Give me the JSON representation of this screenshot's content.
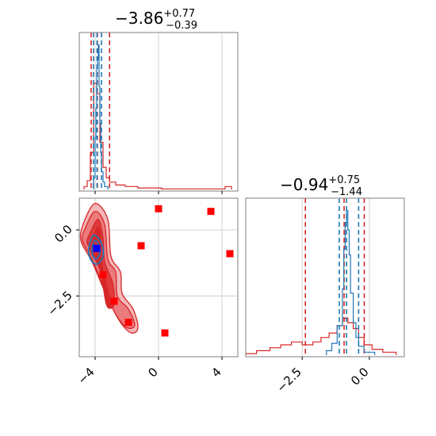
{
  "colors": {
    "red_series": "#d62728",
    "blue_series": "#1f77b4",
    "marker_red": "#ff0000",
    "marker_blue": "#0000ff",
    "contour_fills": [
      "#f5b6b7",
      "#ec7b7d",
      "#e03a3d",
      "#d62728"
    ]
  },
  "chart_data": [
    {
      "type": "histogram",
      "panel": "top-left",
      "title": {
        "value": "−3.86",
        "sup": "+0.77",
        "sub": "−0.39"
      },
      "xlim": [
        -5.0,
        5.0
      ],
      "x_ticks": [
        -4,
        0,
        4
      ],
      "grid": true,
      "series": [
        {
          "color_key": "red_series",
          "bins": [
            [
              -4.7,
              -4.5,
              0.02
            ],
            [
              -4.5,
              -4.3,
              0.06
            ],
            [
              -4.3,
              -4.1,
              0.25
            ],
            [
              -4.1,
              -3.9,
              0.72
            ],
            [
              -3.9,
              -3.7,
              0.65
            ],
            [
              -3.7,
              -3.5,
              0.32
            ],
            [
              -3.5,
              -3.3,
              0.15
            ],
            [
              -3.3,
              -3.1,
              0.08
            ],
            [
              -3.1,
              -2.7,
              0.05
            ],
            [
              -2.7,
              -2.1,
              0.03
            ],
            [
              -2.1,
              -1.3,
              0.02
            ],
            [
              -1.3,
              0.2,
              0.01
            ],
            [
              0.2,
              4.2,
              0.004
            ],
            [
              4.2,
              4.6,
              0.02
            ]
          ],
          "quantiles": [
            -4.25,
            -3.86,
            -3.09
          ]
        },
        {
          "color_key": "blue_series",
          "bins": [
            [
              -4.1,
              -4.0,
              0.08
            ],
            [
              -4.0,
              -3.95,
              0.35
            ],
            [
              -3.95,
              -3.9,
              0.55
            ],
            [
              -3.9,
              -3.85,
              0.82
            ],
            [
              -3.85,
              -3.8,
              0.88
            ],
            [
              -3.8,
              -3.75,
              0.98
            ],
            [
              -3.75,
              -3.7,
              0.7
            ],
            [
              -3.7,
              -3.65,
              0.45
            ],
            [
              -3.65,
              -3.6,
              0.25
            ],
            [
              -3.6,
              -3.5,
              0.12
            ],
            [
              -3.5,
              -3.4,
              0.05
            ],
            [
              -3.4,
              -3.2,
              0.02
            ]
          ],
          "quantiles": [
            -4.1,
            -3.88,
            -3.6
          ]
        }
      ]
    },
    {
      "type": "histogram",
      "panel": "bottom-right",
      "title": {
        "value": "−0.94",
        "sup": "+0.75",
        "sub": "−1.44"
      },
      "xlim": [
        -4.6,
        1.3
      ],
      "x_ticks": [
        -2.5,
        0.0
      ],
      "x_tick_labels": [
        "−2.5",
        "0.0"
      ],
      "grid": true,
      "series": [
        {
          "color_key": "red_series",
          "bins": [
            [
              -4.6,
              -4.2,
              0.01
            ],
            [
              -4.2,
              -3.7,
              0.03
            ],
            [
              -3.7,
              -3.3,
              0.05
            ],
            [
              -3.3,
              -2.9,
              0.07
            ],
            [
              -2.9,
              -2.5,
              0.09
            ],
            [
              -2.5,
              -2.1,
              0.07
            ],
            [
              -2.1,
              -1.8,
              0.09
            ],
            [
              -1.8,
              -1.5,
              0.12
            ],
            [
              -1.5,
              -1.2,
              0.15
            ],
            [
              -1.2,
              -1.0,
              0.2
            ],
            [
              -1.0,
              -0.8,
              0.25
            ],
            [
              -0.8,
              -0.6,
              0.22
            ],
            [
              -0.6,
              -0.4,
              0.18
            ],
            [
              -0.4,
              -0.2,
              0.12
            ],
            [
              -0.2,
              0.1,
              0.07
            ],
            [
              0.1,
              0.5,
              0.04
            ],
            [
              0.5,
              1.0,
              0.02
            ]
          ],
          "quantiles": [
            -2.38,
            -0.94,
            -0.19
          ]
        },
        {
          "color_key": "blue_series",
          "bins": [
            [
              -1.6,
              -1.4,
              0.03
            ],
            [
              -1.4,
              -1.2,
              0.08
            ],
            [
              -1.2,
              -1.0,
              0.2
            ],
            [
              -1.0,
              -0.95,
              0.45
            ],
            [
              -0.95,
              -0.9,
              0.72
            ],
            [
              -0.9,
              -0.85,
              0.9
            ],
            [
              -0.85,
              -0.8,
              0.98
            ],
            [
              -0.8,
              -0.75,
              0.85
            ],
            [
              -0.75,
              -0.7,
              0.68
            ],
            [
              -0.7,
              -0.6,
              0.42
            ],
            [
              -0.6,
              -0.5,
              0.22
            ],
            [
              -0.5,
              -0.4,
              0.12
            ],
            [
              -0.4,
              -0.2,
              0.06
            ],
            [
              -0.2,
              0.2,
              0.02
            ]
          ],
          "quantiles": [
            -1.12,
            -0.85,
            -0.4
          ]
        }
      ]
    },
    {
      "type": "scatter",
      "panel": "bottom-left",
      "xlim": [
        -5.0,
        5.0
      ],
      "ylim": [
        -4.8,
        1.2
      ],
      "x_ticks": [
        -4,
        0,
        4
      ],
      "y_ticks": [
        0.0,
        -2.5
      ],
      "y_tick_labels": [
        "0.0",
        "−2.5"
      ],
      "grid": true,
      "contour_levels": [
        [
          [
            -4.7,
            0.3
          ],
          [
            -4.0,
            1.0
          ],
          [
            -3.2,
            0.4
          ],
          [
            -3.0,
            -1.0
          ],
          [
            -2.4,
            -1.6
          ],
          [
            -2.3,
            -2.4
          ],
          [
            -1.6,
            -3.0
          ],
          [
            -1.3,
            -3.7
          ],
          [
            -1.7,
            -3.9
          ],
          [
            -2.4,
            -3.5
          ],
          [
            -3.2,
            -2.6
          ],
          [
            -4.2,
            -1.2
          ],
          [
            -4.9,
            -0.4
          ]
        ],
        [
          [
            -4.6,
            0.1
          ],
          [
            -4.0,
            0.7
          ],
          [
            -3.4,
            0.2
          ],
          [
            -3.2,
            -1.1
          ],
          [
            -2.7,
            -1.6
          ],
          [
            -2.6,
            -2.5
          ],
          [
            -1.9,
            -3.0
          ],
          [
            -1.5,
            -3.6
          ],
          [
            -2.0,
            -3.7
          ],
          [
            -2.7,
            -3.2
          ],
          [
            -3.3,
            -2.4
          ],
          [
            -4.2,
            -1.1
          ],
          [
            -4.8,
            -0.4
          ]
        ],
        [
          [
            -4.3,
            -0.1
          ],
          [
            -3.8,
            0.4
          ],
          [
            -3.5,
            -0.3
          ],
          [
            -3.4,
            -1.2
          ],
          [
            -2.9,
            -2.0
          ],
          [
            -2.8,
            -2.8
          ],
          [
            -3.1,
            -2.9
          ],
          [
            -3.4,
            -2.0
          ],
          [
            -4.0,
            -1.0
          ],
          [
            -4.5,
            -0.5
          ]
        ],
        [
          [
            -4.1,
            -0.3
          ],
          [
            -3.8,
            0.1
          ],
          [
            -3.6,
            -0.5
          ],
          [
            -3.6,
            -1.2
          ],
          [
            -3.2,
            -2.3
          ],
          [
            -3.0,
            -2.9
          ],
          [
            -3.3,
            -2.8
          ],
          [
            -3.7,
            -1.5
          ],
          [
            -4.3,
            -0.8
          ]
        ]
      ],
      "blue_contours": [
        [
          [
            -4.4,
            -0.7
          ],
          [
            -4.1,
            -0.2
          ],
          [
            -3.6,
            -0.5
          ],
          [
            -3.5,
            -1.0
          ],
          [
            -3.9,
            -1.3
          ],
          [
            -4.3,
            -1.1
          ]
        ],
        [
          [
            -4.2,
            -0.7
          ],
          [
            -4.0,
            -0.4
          ],
          [
            -3.75,
            -0.6
          ],
          [
            -3.7,
            -0.9
          ],
          [
            -3.95,
            -1.1
          ],
          [
            -4.15,
            -0.95
          ]
        ]
      ],
      "square_markers_red": [
        [
          0.0,
          0.8
        ],
        [
          3.3,
          0.7
        ],
        [
          4.5,
          -0.9
        ],
        [
          -1.1,
          -0.6
        ],
        [
          -3.5,
          -1.7
        ],
        [
          -2.8,
          -2.7
        ],
        [
          -1.9,
          -3.5
        ],
        [
          0.4,
          -3.9
        ]
      ],
      "square_markers_blue": [
        [
          -3.9,
          -0.7
        ]
      ]
    }
  ]
}
